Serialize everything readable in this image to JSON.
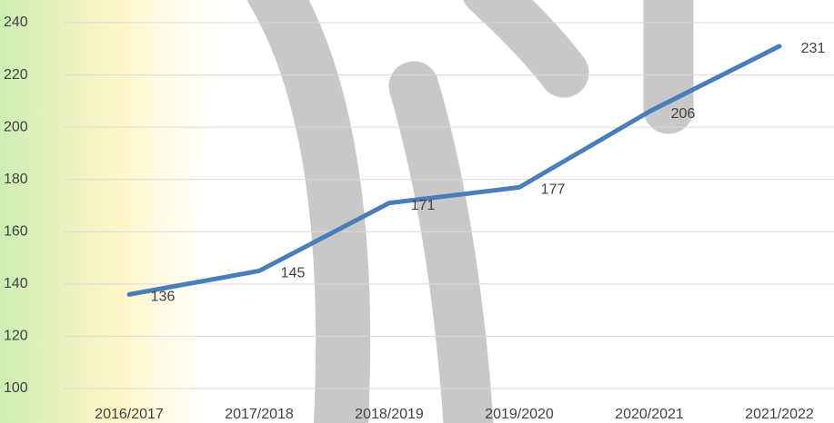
{
  "chart_data": {
    "type": "line",
    "categories": [
      "2016/2017",
      "2017/2018",
      "2018/2019",
      "2019/2020",
      "2020/2021",
      "2021/2022"
    ],
    "values": [
      136,
      145,
      171,
      177,
      206,
      231
    ],
    "color": "#4a7ebb",
    "ylim": [
      100,
      240
    ],
    "yticks": [
      100,
      120,
      140,
      160,
      180,
      200,
      220,
      240
    ],
    "grid": true,
    "data_labels": true
  }
}
